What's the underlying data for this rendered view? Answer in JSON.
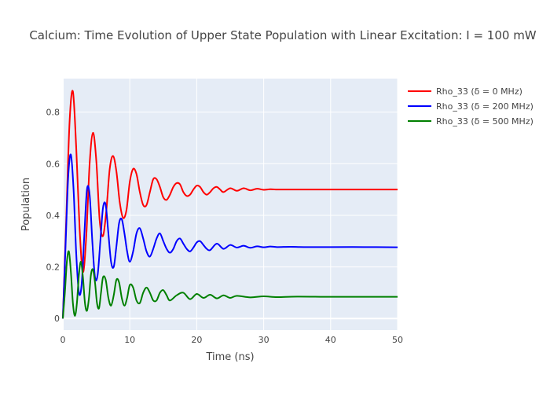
{
  "chart_data": {
    "type": "line",
    "title": "Calcium: Time Evolution of Upper State Population with Linear Excitation: I = 100 mW",
    "xlabel": "Time (ns)",
    "ylabel": "Population",
    "xlim": [
      0,
      50
    ],
    "ylim": [
      -0.045,
      0.93
    ],
    "x_ticks": [
      0,
      10,
      20,
      30,
      40,
      50
    ],
    "y_ticks": [
      0,
      0.2,
      0.4,
      0.6,
      0.8
    ],
    "x_tick_labels": [
      "0",
      "10",
      "20",
      "30",
      "40",
      "50"
    ],
    "y_tick_labels": [
      "0",
      "0.2",
      "0.4",
      "0.6",
      "0.8"
    ],
    "grid": true,
    "legend_position": "top-right",
    "series": [
      {
        "name": "Rho_33 (δ = 0 MHz)",
        "color": "#ff0000",
        "x": [
          0,
          0.5,
          1.0,
          1.5,
          2.0,
          2.5,
          3.0,
          3.5,
          4.0,
          4.5,
          5.0,
          5.5,
          6.0,
          6.5,
          7.0,
          7.5,
          8.0,
          8.5,
          9.0,
          9.5,
          10.0,
          10.5,
          11.0,
          11.5,
          12.0,
          12.5,
          13.0,
          13.5,
          14.0,
          14.5,
          15.0,
          15.5,
          16.0,
          16.5,
          17.0,
          17.5,
          18.0,
          18.5,
          19.0,
          19.5,
          20.0,
          20.5,
          21.0,
          21.5,
          22.0,
          22.5,
          23.0,
          23.5,
          24.0,
          25.0,
          26.0,
          27.0,
          28.0,
          29.0,
          30.0,
          31.0,
          32.0,
          33.0,
          34.0,
          35.0,
          36.0,
          37.0,
          38.0,
          40.0,
          45.0,
          50.0
        ],
        "values": [
          0.0,
          0.38,
          0.76,
          0.88,
          0.66,
          0.35,
          0.18,
          0.32,
          0.6,
          0.72,
          0.61,
          0.38,
          0.32,
          0.42,
          0.58,
          0.63,
          0.57,
          0.45,
          0.39,
          0.42,
          0.53,
          0.58,
          0.56,
          0.49,
          0.44,
          0.44,
          0.49,
          0.54,
          0.54,
          0.51,
          0.47,
          0.46,
          0.48,
          0.51,
          0.525,
          0.52,
          0.49,
          0.475,
          0.48,
          0.5,
          0.515,
          0.51,
          0.49,
          0.48,
          0.49,
          0.505,
          0.51,
          0.5,
          0.49,
          0.505,
          0.495,
          0.505,
          0.497,
          0.503,
          0.499,
          0.501,
          0.5,
          0.5,
          0.5,
          0.5,
          0.5,
          0.5,
          0.5,
          0.5,
          0.5,
          0.5
        ]
      },
      {
        "name": "Rho_33 (δ = 200 MHz)",
        "color": "#0000ff",
        "x": [
          0,
          0.4,
          0.8,
          1.2,
          1.6,
          2.0,
          2.4,
          2.8,
          3.2,
          3.6,
          4.0,
          4.4,
          4.8,
          5.2,
          5.6,
          6.0,
          6.4,
          6.8,
          7.2,
          7.6,
          8.0,
          8.4,
          8.8,
          9.2,
          9.6,
          10.0,
          10.5,
          11.0,
          11.5,
          12.0,
          12.5,
          13.0,
          13.5,
          14.0,
          14.5,
          15.0,
          15.5,
          16.0,
          16.5,
          17.0,
          17.5,
          18.0,
          18.5,
          19.0,
          19.5,
          20.0,
          20.5,
          21.0,
          21.5,
          22.0,
          23.0,
          24.0,
          25.0,
          26.0,
          27.0,
          28.0,
          29.0,
          30.0,
          31.0,
          32.0,
          34.0,
          36.0,
          40.0,
          45.0,
          50.0
        ],
        "values": [
          0.0,
          0.28,
          0.55,
          0.635,
          0.5,
          0.25,
          0.1,
          0.13,
          0.32,
          0.5,
          0.48,
          0.3,
          0.16,
          0.17,
          0.3,
          0.43,
          0.44,
          0.33,
          0.22,
          0.2,
          0.28,
          0.37,
          0.385,
          0.33,
          0.26,
          0.22,
          0.26,
          0.33,
          0.35,
          0.31,
          0.26,
          0.24,
          0.27,
          0.31,
          0.33,
          0.3,
          0.27,
          0.255,
          0.27,
          0.3,
          0.31,
          0.29,
          0.27,
          0.26,
          0.275,
          0.295,
          0.3,
          0.285,
          0.27,
          0.265,
          0.29,
          0.27,
          0.285,
          0.275,
          0.282,
          0.274,
          0.28,
          0.276,
          0.279,
          0.277,
          0.278,
          0.277,
          0.277,
          0.277,
          0.276
        ]
      },
      {
        "name": "Rho_33 (δ = 500 MHz)",
        "color": "#008000",
        "x": [
          0,
          0.3,
          0.6,
          0.9,
          1.2,
          1.5,
          1.8,
          2.1,
          2.4,
          2.7,
          3.0,
          3.3,
          3.6,
          3.9,
          4.2,
          4.5,
          4.8,
          5.1,
          5.4,
          5.7,
          6.0,
          6.4,
          6.8,
          7.2,
          7.6,
          8.0,
          8.4,
          8.8,
          9.2,
          9.6,
          10.0,
          10.5,
          11.0,
          11.5,
          12.0,
          12.5,
          13.0,
          13.5,
          14.0,
          14.5,
          15.0,
          15.5,
          16.0,
          17.0,
          18.0,
          19.0,
          20.0,
          21.0,
          22.0,
          23.0,
          24.0,
          25.0,
          26.0,
          28.0,
          30.0,
          32.0,
          35.0,
          40.0,
          45.0,
          50.0
        ],
        "values": [
          0.0,
          0.1,
          0.22,
          0.26,
          0.18,
          0.06,
          0.01,
          0.06,
          0.17,
          0.22,
          0.16,
          0.06,
          0.03,
          0.08,
          0.17,
          0.19,
          0.14,
          0.06,
          0.04,
          0.1,
          0.16,
          0.15,
          0.08,
          0.05,
          0.09,
          0.15,
          0.14,
          0.08,
          0.05,
          0.08,
          0.13,
          0.12,
          0.07,
          0.06,
          0.1,
          0.12,
          0.1,
          0.07,
          0.07,
          0.1,
          0.11,
          0.09,
          0.07,
          0.09,
          0.1,
          0.075,
          0.095,
          0.08,
          0.092,
          0.078,
          0.09,
          0.08,
          0.088,
          0.082,
          0.086,
          0.083,
          0.085,
          0.084,
          0.084,
          0.084
        ]
      }
    ]
  }
}
